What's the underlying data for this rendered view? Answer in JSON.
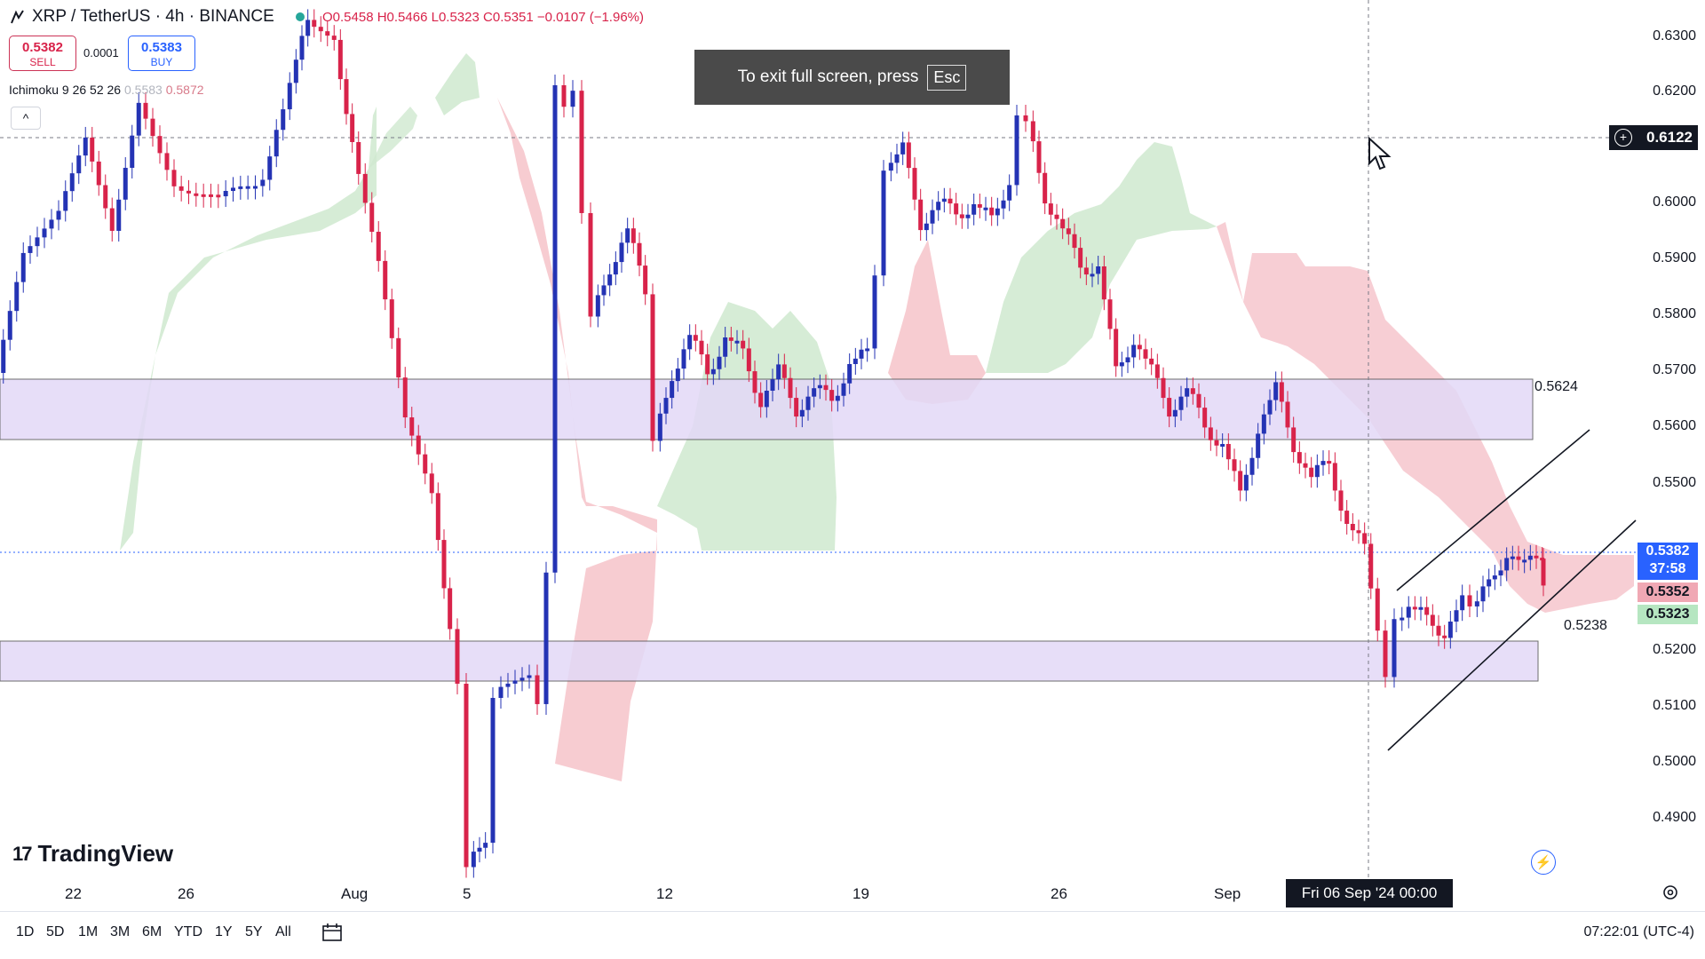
{
  "header": {
    "symbol": "XRP / TetherUS · 4h · BINANCE",
    "ohlc_o": "O0.5458",
    "ohlc_h": "H0.5466",
    "ohlc_l": "L0.5323",
    "ohlc_c": "C0.5351",
    "ohlc_chg": "−0.0107 (−1.96%)"
  },
  "trade": {
    "sell_price": "0.5382",
    "sell_label": "SELL",
    "spread": "0.0001",
    "buy_price": "0.5383",
    "buy_label": "BUY"
  },
  "indicator": {
    "name": "Ichimoku 9 26 52 26",
    "value1": "0.5583",
    "value2": "0.5872",
    "collapse": "^"
  },
  "toast": {
    "text": "To exit full screen, press",
    "key": "Esc"
  },
  "price_axis": {
    "labels": [
      "0.6300",
      "0.6200",
      "0.6000",
      "0.5900",
      "0.5800",
      "0.5700",
      "0.5600",
      "0.5500",
      "0.5200",
      "0.5100",
      "0.5000",
      "0.4900"
    ],
    "crosshair_price": "0.6122",
    "current_price": "0.5382",
    "countdown": "37:58",
    "tag_high": "0.5352",
    "tag_low": "0.5323"
  },
  "levels": {
    "resistance_label": "0.5624",
    "channel_label": "0.5238"
  },
  "time_axis": {
    "labels": [
      "22",
      "26",
      "Aug",
      "5",
      "12",
      "19",
      "26",
      "Sep"
    ],
    "crosshair_date": "Fri 06 Sep '24   00:00"
  },
  "branding": {
    "logo": "TradingView"
  },
  "bottom_bar": {
    "timeframes": [
      "1D",
      "5D",
      "1M",
      "3M",
      "6M",
      "YTD",
      "1Y",
      "5Y",
      "All"
    ],
    "clock": "07:22:01 (UTC-4)"
  },
  "colors": {
    "up_candle": "#2433b4",
    "down_candle": "#d8234a",
    "cloud_green": "#cfe9cf",
    "cloud_red": "#f6c6cc",
    "zone": "#e3d9f7"
  },
  "icons": [
    "tradingview-logo-icon",
    "calendar-icon",
    "gear-icon",
    "lightning-icon",
    "cursor-icon",
    "crosshair-plus-icon"
  ]
}
